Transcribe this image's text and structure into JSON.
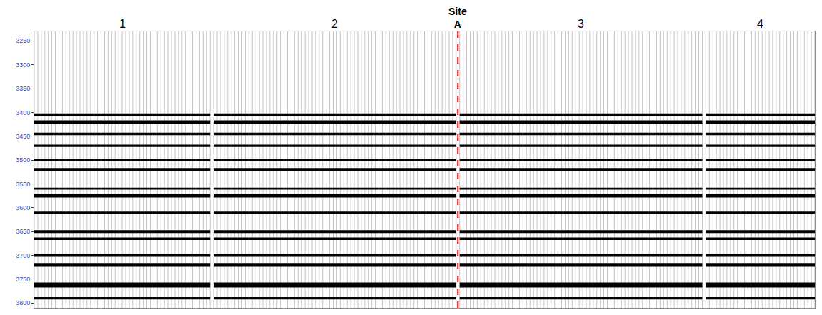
{
  "chart_data": {
    "type": "seismic_section",
    "xlim": [
      0,
      222
    ],
    "ylim": [
      3810,
      3230
    ],
    "yticks": [
      3250,
      3300,
      3350,
      3400,
      3450,
      3500,
      3550,
      3600,
      3650,
      3700,
      3750,
      3800
    ],
    "tick_labels": "y",
    "grid": false,
    "color": "#000000",
    "panels": [
      {
        "label": "1",
        "start": 0,
        "end": 50
      },
      {
        "label": "2",
        "start": 51,
        "end": 120
      },
      {
        "label": "3",
        "start": 121,
        "end": 190
      },
      {
        "label": "4",
        "start": 191,
        "end": 222
      }
    ],
    "site": {
      "label": "Site A",
      "x": 120.5,
      "color": "#e00000"
    },
    "reflectors": [
      {
        "time": 3405,
        "amplitude": 0.5
      },
      {
        "time": 3420,
        "amplitude": 0.6
      },
      {
        "time": 3445,
        "amplitude": 0.4
      },
      {
        "time": 3470,
        "amplitude": 0.4
      },
      {
        "time": 3500,
        "amplitude": 0.3
      },
      {
        "time": 3520,
        "amplitude": 0.6
      },
      {
        "time": 3560,
        "amplitude": 0.3
      },
      {
        "time": 3575,
        "amplitude": 0.6
      },
      {
        "time": 3610,
        "amplitude": 0.3
      },
      {
        "time": 3650,
        "amplitude": 0.5
      },
      {
        "time": 3665,
        "amplitude": 0.4
      },
      {
        "time": 3700,
        "amplitude": 0.5
      },
      {
        "time": 3720,
        "amplitude": 0.7
      },
      {
        "time": 3762,
        "amplitude": 1.0
      },
      {
        "time": 3790,
        "amplitude": 0.4
      }
    ]
  }
}
